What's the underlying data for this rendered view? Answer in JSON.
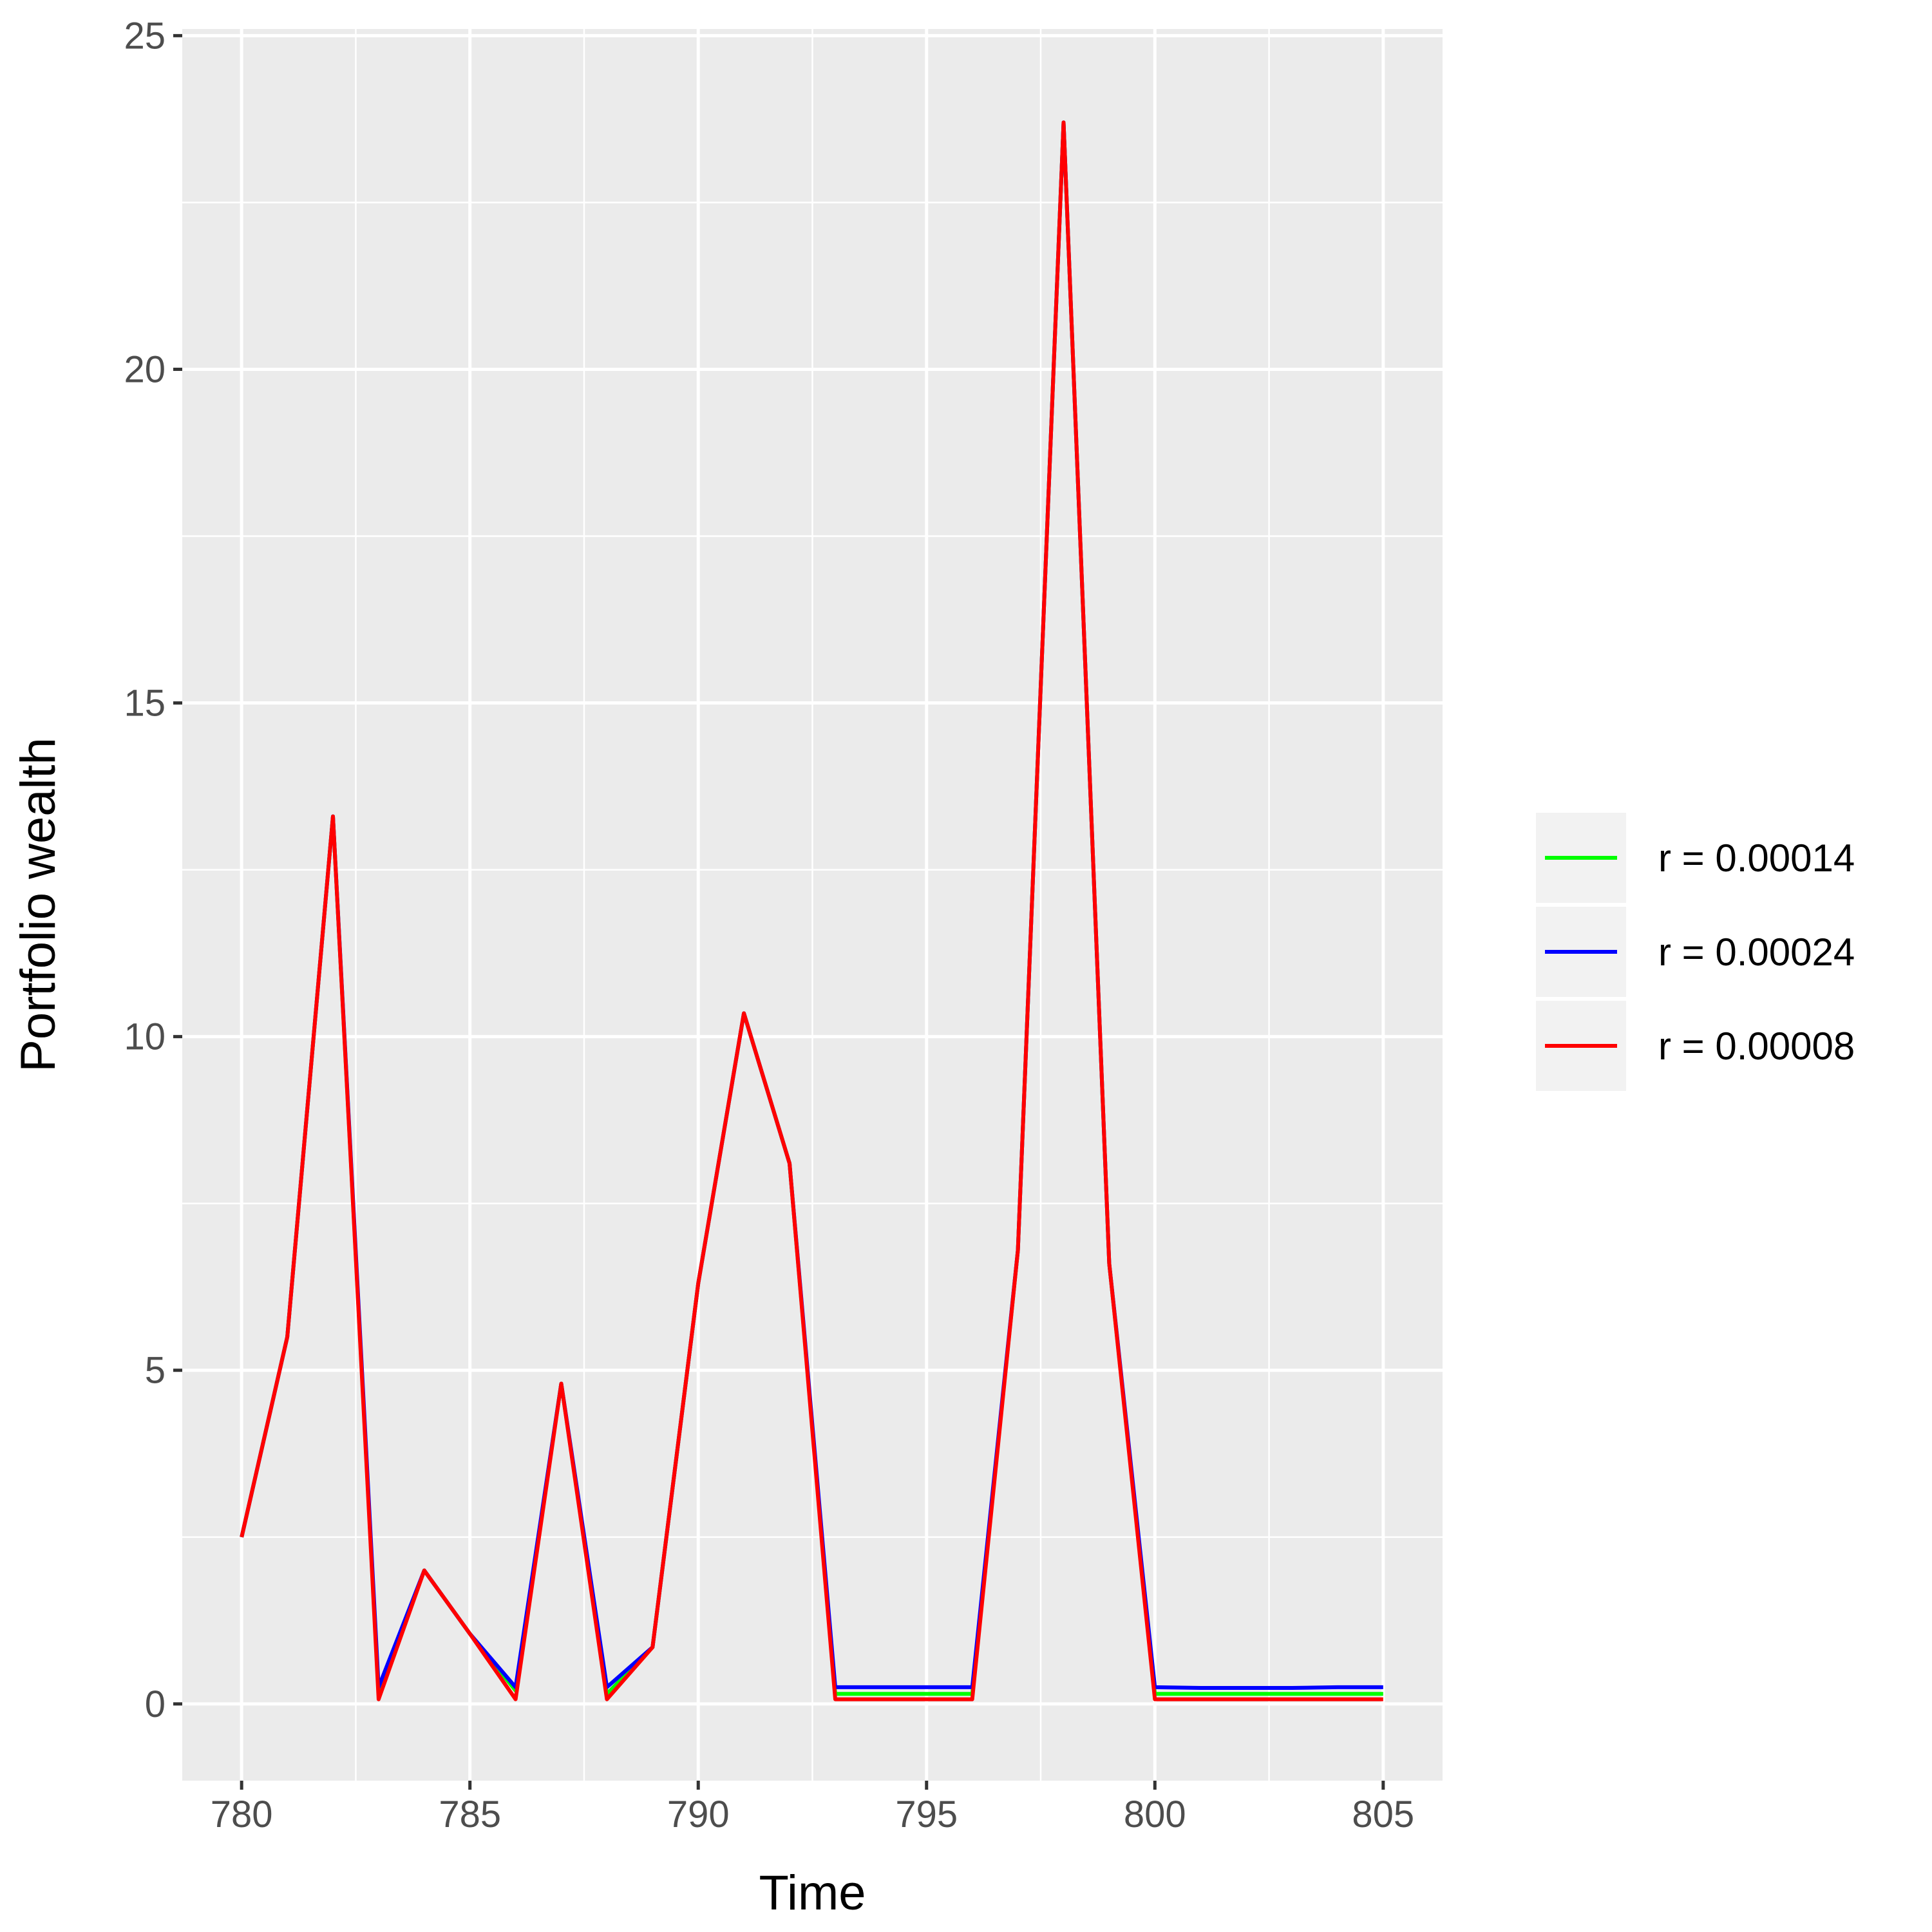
{
  "chart_data": {
    "type": "line",
    "title": "",
    "xlabel": "Time",
    "ylabel": "Portfolio wealth",
    "xlim": [
      778.7,
      806.3
    ],
    "ylim": [
      -1.15,
      25.1
    ],
    "xticks": [
      780,
      785,
      790,
      795,
      800,
      805
    ],
    "yticks": [
      0,
      5,
      10,
      15,
      20,
      25
    ],
    "grid": true,
    "legend_position": "right",
    "x": [
      780,
      781,
      782,
      783,
      784,
      785,
      786,
      787,
      788,
      789,
      790,
      791,
      792,
      793,
      794,
      795,
      796,
      797,
      798,
      799,
      800,
      801,
      802,
      803,
      804,
      805
    ],
    "series": [
      {
        "name": "r = 0.00014",
        "color": "#00ff00",
        "values": [
          2.5,
          5.5,
          13.3,
          0.15,
          2.0,
          1.05,
          0.2,
          4.8,
          0.15,
          0.85,
          6.3,
          10.35,
          8.1,
          0.15,
          0.15,
          0.15,
          0.15,
          6.8,
          23.7,
          6.6,
          0.15,
          0.15,
          0.15,
          0.15,
          0.15,
          0.15
        ]
      },
      {
        "name": "r = 0.00024",
        "color": "#0000ff",
        "values": [
          2.5,
          5.5,
          13.3,
          0.25,
          2.0,
          1.05,
          0.25,
          4.8,
          0.25,
          0.85,
          6.3,
          10.35,
          8.1,
          0.25,
          0.25,
          0.25,
          0.25,
          6.8,
          23.7,
          6.6,
          0.25,
          0.24,
          0.24,
          0.24,
          0.25,
          0.25
        ]
      },
      {
        "name": "r = 0.00008",
        "color": "#ff0000",
        "values": [
          2.5,
          5.5,
          13.3,
          0.07,
          2.0,
          1.05,
          0.07,
          4.8,
          0.07,
          0.85,
          6.3,
          10.35,
          8.1,
          0.07,
          0.07,
          0.07,
          0.07,
          6.8,
          23.7,
          6.6,
          0.07,
          0.07,
          0.07,
          0.07,
          0.07,
          0.07
        ]
      }
    ]
  }
}
